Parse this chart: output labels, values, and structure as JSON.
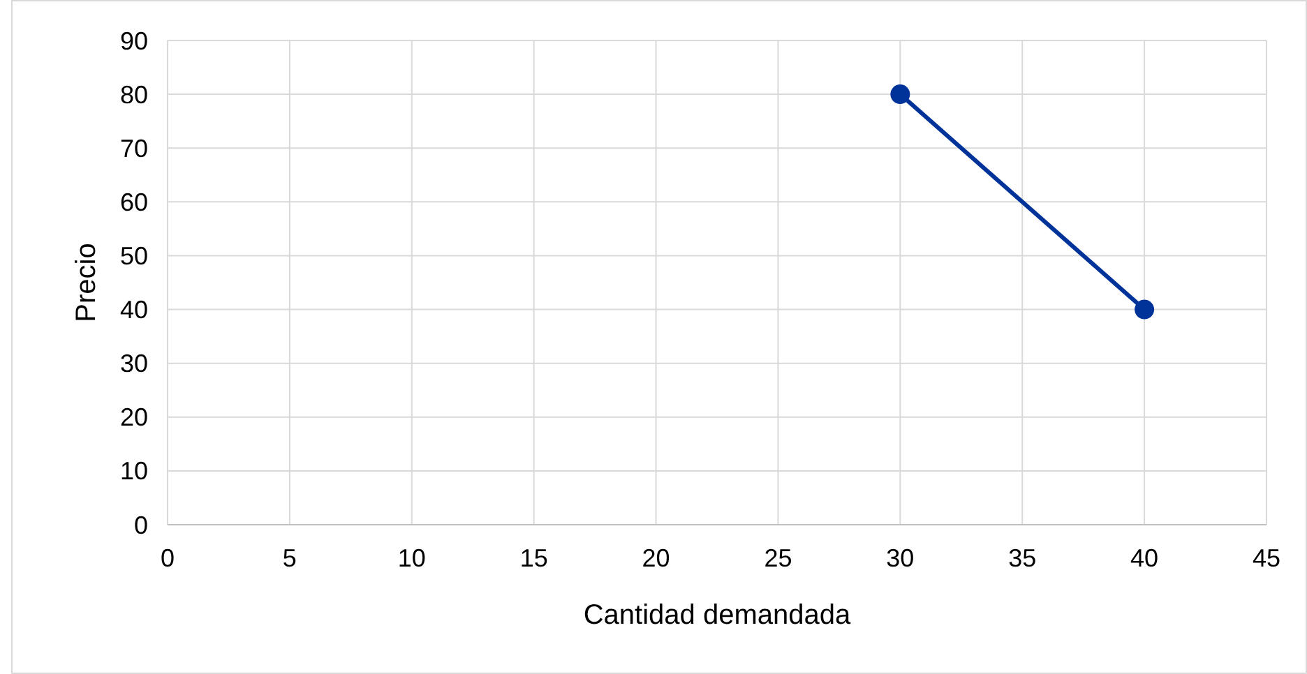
{
  "chart_data": {
    "type": "line",
    "xlabel": "Cantidad demandada",
    "ylabel": "Precio",
    "x": [
      30,
      40
    ],
    "series": [
      {
        "color": "#003399",
        "values": [
          80,
          40
        ]
      }
    ],
    "xlim": [
      0,
      45
    ],
    "xticks": [
      0,
      5,
      10,
      15,
      20,
      25,
      30,
      35,
      40,
      45
    ],
    "ylim": [
      0,
      90
    ],
    "yticks": [
      0,
      10,
      20,
      30,
      40,
      50,
      60,
      70,
      80,
      90
    ],
    "grid": true,
    "marker": "circle",
    "line_style": "solid"
  }
}
